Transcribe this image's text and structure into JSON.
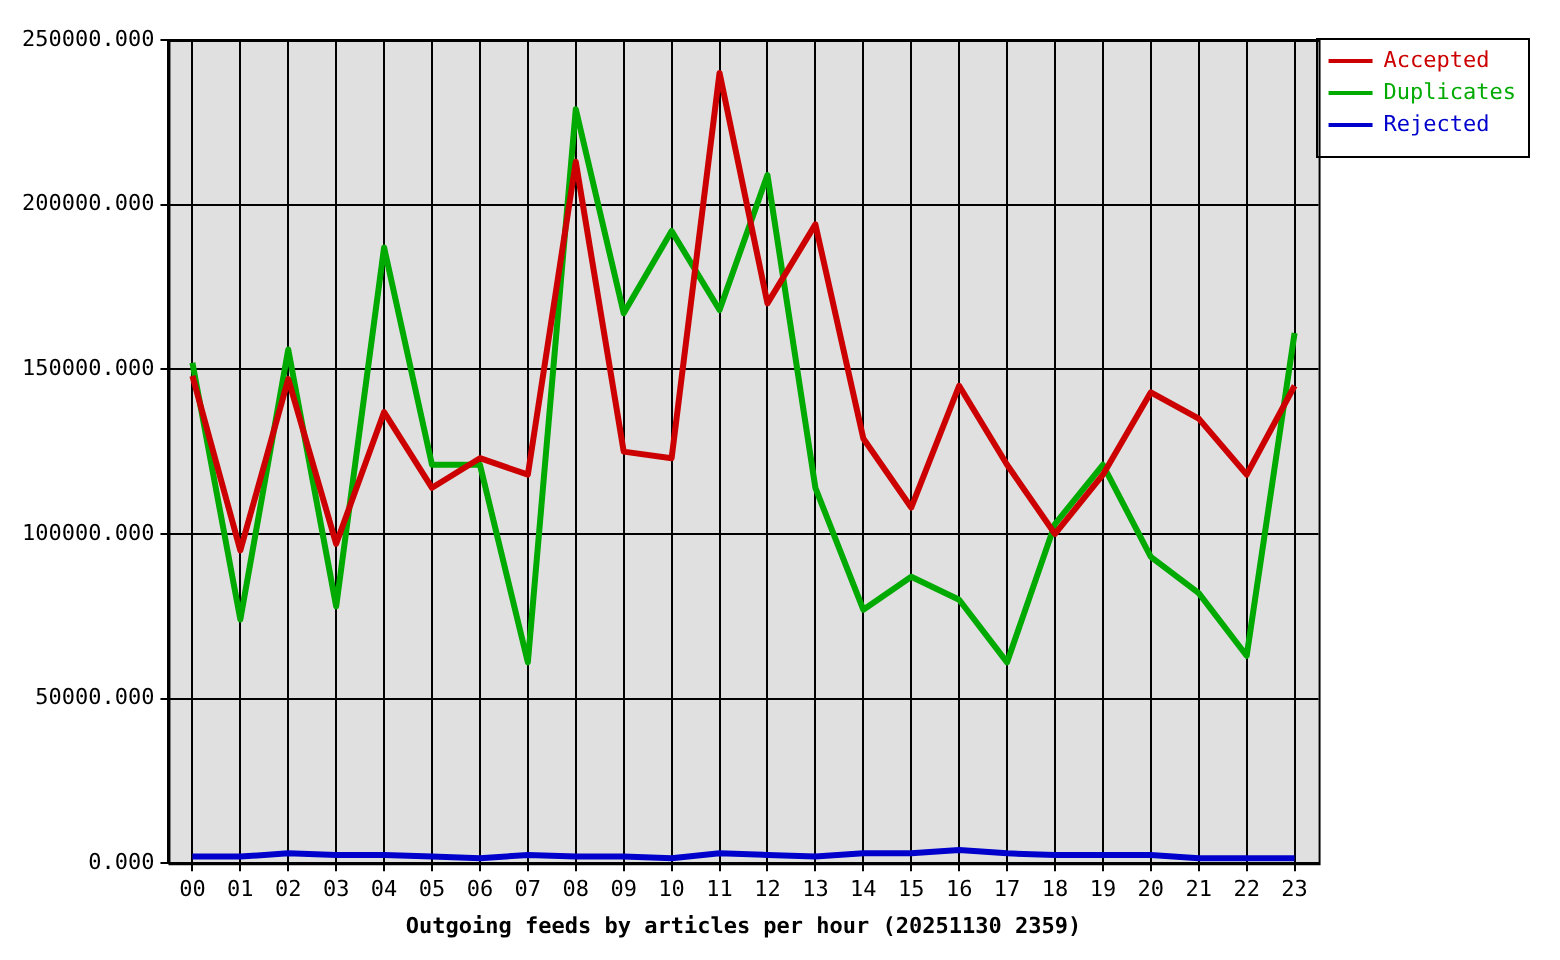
{
  "chart_data": {
    "type": "line",
    "xlabel": "Outgoing feeds by articles per hour (20251130 2359)",
    "categories": [
      "00",
      "01",
      "02",
      "03",
      "04",
      "05",
      "06",
      "07",
      "08",
      "09",
      "10",
      "11",
      "12",
      "13",
      "14",
      "15",
      "16",
      "17",
      "18",
      "19",
      "20",
      "21",
      "22",
      "23"
    ],
    "series": [
      {
        "name": "Accepted",
        "color": "#cc0000",
        "values": [
          148000,
          95000,
          147000,
          97000,
          137000,
          114000,
          123000,
          118000,
          213000,
          125000,
          123000,
          240000,
          170000,
          194000,
          129000,
          108000,
          145000,
          121000,
          100000,
          118000,
          143000,
          135000,
          118000,
          145000
        ]
      },
      {
        "name": "Duplicates",
        "color": "#00aa00",
        "values": [
          152000,
          74000,
          156000,
          78000,
          187000,
          121000,
          121000,
          61000,
          229000,
          167000,
          192000,
          168000,
          209000,
          114000,
          77000,
          87000,
          80000,
          61000,
          103000,
          121000,
          93000,
          82000,
          63000,
          161000
        ]
      },
      {
        "name": "Rejected",
        "color": "#0000cc",
        "values": [
          2000,
          2000,
          3000,
          2500,
          2500,
          2000,
          1500,
          2500,
          2000,
          2000,
          1500,
          3000,
          2500,
          2000,
          3000,
          3000,
          4000,
          3000,
          2500,
          2500,
          2500,
          1500,
          1500,
          1500
        ]
      }
    ],
    "ylim": [
      0,
      250000
    ],
    "yticks": [
      {
        "value": 0,
        "label": "0.000"
      },
      {
        "value": 50000,
        "label": "50000.000"
      },
      {
        "value": 100000,
        "label": "100000.000"
      },
      {
        "value": 150000,
        "label": "150000.000"
      },
      {
        "value": 200000,
        "label": "200000.000"
      },
      {
        "value": 250000,
        "label": "250000.000"
      }
    ],
    "grid": true,
    "legend": "top right",
    "marker": "none",
    "line_style": "solid"
  }
}
